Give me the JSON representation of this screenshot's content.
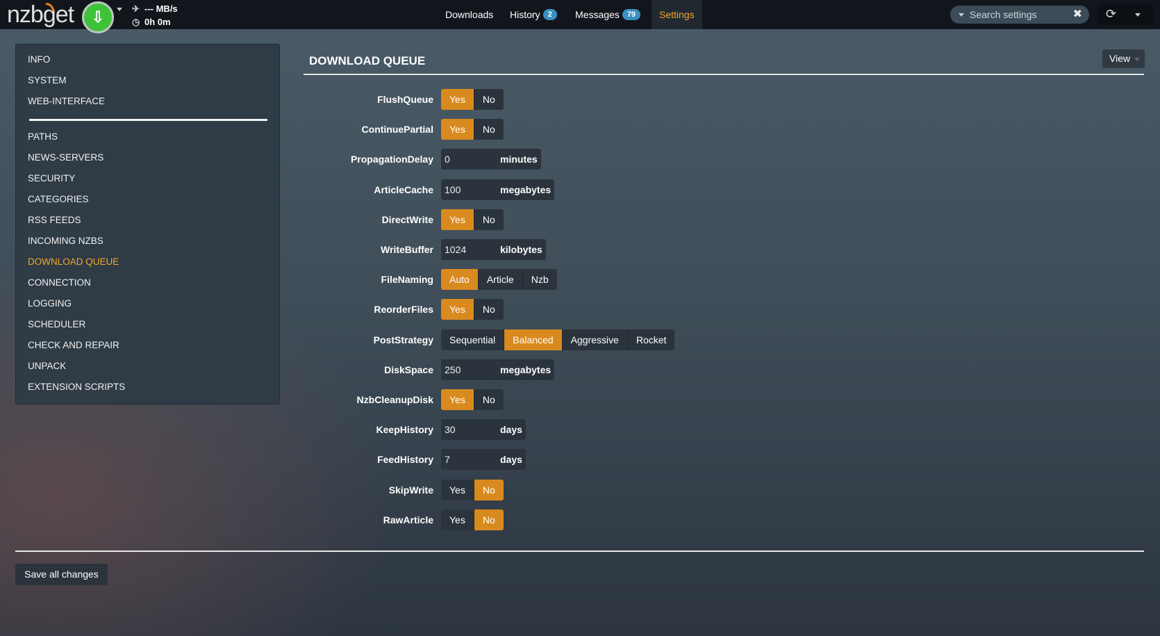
{
  "header": {
    "logo": "nzbget",
    "speed": "--- MB/s",
    "time": "0h 0m",
    "nav": [
      {
        "label": "Downloads"
      },
      {
        "label": "History",
        "badge": "2"
      },
      {
        "label": "Messages",
        "badge": "79"
      },
      {
        "label": "Settings",
        "active": true
      }
    ],
    "search_placeholder": "Search settings"
  },
  "sidebar": {
    "items": [
      "INFO",
      "SYSTEM",
      "WEB-INTERFACE",
      "PATHS",
      "NEWS-SERVERS",
      "SECURITY",
      "CATEGORIES",
      "RSS FEEDS",
      "INCOMING NZBS",
      "DOWNLOAD QUEUE",
      "CONNECTION",
      "LOGGING",
      "SCHEDULER",
      "CHECK AND REPAIR",
      "UNPACK",
      "EXTENSION SCRIPTS"
    ],
    "active": "DOWNLOAD QUEUE"
  },
  "main": {
    "title": "DOWNLOAD QUEUE",
    "view_label": "View",
    "settings": [
      {
        "label": "FlushQueue",
        "type": "switch",
        "options": [
          "Yes",
          "No"
        ],
        "value": "Yes"
      },
      {
        "label": "ContinuePartial",
        "type": "switch",
        "options": [
          "Yes",
          "No"
        ],
        "value": "Yes"
      },
      {
        "label": "PropagationDelay",
        "type": "input",
        "value": "0",
        "unit": "minutes"
      },
      {
        "label": "ArticleCache",
        "type": "input",
        "value": "100",
        "unit": "megabytes"
      },
      {
        "label": "DirectWrite",
        "type": "switch",
        "options": [
          "Yes",
          "No"
        ],
        "value": "Yes"
      },
      {
        "label": "WriteBuffer",
        "type": "input",
        "value": "1024",
        "unit": "kilobytes"
      },
      {
        "label": "FileNaming",
        "type": "switch",
        "options": [
          "Auto",
          "Article",
          "Nzb"
        ],
        "value": "Auto"
      },
      {
        "label": "ReorderFiles",
        "type": "switch",
        "options": [
          "Yes",
          "No"
        ],
        "value": "Yes"
      },
      {
        "label": "PostStrategy",
        "type": "switch",
        "options": [
          "Sequential",
          "Balanced",
          "Aggressive",
          "Rocket"
        ],
        "value": "Balanced"
      },
      {
        "label": "DiskSpace",
        "type": "input",
        "value": "250",
        "unit": "megabytes"
      },
      {
        "label": "NzbCleanupDisk",
        "type": "switch",
        "options": [
          "Yes",
          "No"
        ],
        "value": "Yes"
      },
      {
        "label": "KeepHistory",
        "type": "input",
        "value": "30",
        "unit": "days"
      },
      {
        "label": "FeedHistory",
        "type": "input",
        "value": "7",
        "unit": "days"
      },
      {
        "label": "SkipWrite",
        "type": "switch",
        "options": [
          "Yes",
          "No"
        ],
        "value": "No"
      },
      {
        "label": "RawArticle",
        "type": "switch",
        "options": [
          "Yes",
          "No"
        ],
        "value": "No"
      }
    ],
    "save_label": "Save all changes"
  },
  "colors": {
    "accent": "#d98a1f",
    "active_text": "#f0a830",
    "badge": "#3a8fc2",
    "download_button": "#3fc13a"
  }
}
